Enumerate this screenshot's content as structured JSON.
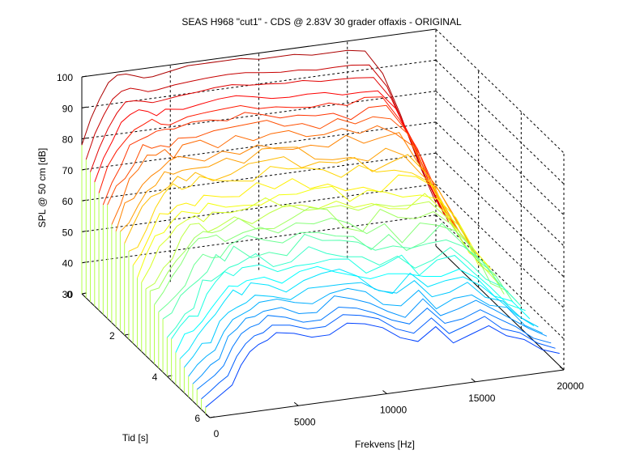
{
  "chart_data": {
    "type": "waterfall-3d",
    "title": "SEAS H968 \"cut1\" - CDS @ 2.83V 30 grader offaxis - ORIGINAL",
    "xlabel": "Frekvens [Hz]",
    "ylabel": "Tid [s]",
    "zlabel": "SPL @ 50 cm [dB]",
    "xlim": [
      0,
      20000
    ],
    "ylim": [
      0,
      6
    ],
    "zlim": [
      30,
      100
    ],
    "x_ticks": [
      "0",
      "5000",
      "10000",
      "15000",
      "20000"
    ],
    "y_ticks": [
      "0",
      "2",
      "4",
      "6"
    ],
    "z_ticks": [
      "30",
      "40",
      "50",
      "60",
      "70",
      "80",
      "90",
      "100"
    ],
    "colormap": "jet",
    "grid": true,
    "x": [
      0,
      500,
      1000,
      1500,
      2000,
      2500,
      3000,
      3500,
      4000,
      5000,
      6000,
      7000,
      8000,
      9000,
      10000,
      11000,
      12000,
      13000,
      14000,
      15000,
      16000,
      17000,
      18000,
      19000,
      20000
    ],
    "time_slices": [
      0,
      0.2,
      0.4,
      0.6,
      0.8,
      1.0,
      1.2,
      1.4,
      1.6,
      1.8,
      2.0,
      2.2,
      2.4,
      2.6,
      2.8,
      3.0,
      3.2,
      3.4,
      3.6,
      3.8,
      4.0,
      4.2,
      4.4,
      4.6,
      4.8,
      5.0,
      5.2,
      5.4,
      5.6,
      5.8
    ],
    "first_slice_spl": [
      78,
      86,
      92,
      97,
      99,
      99,
      98,
      97,
      97,
      98,
      99,
      99,
      99,
      99,
      98,
      98,
      98,
      97,
      97,
      97,
      96,
      88,
      74,
      58,
      44
    ],
    "last_slice_spl": [
      32,
      34,
      36,
      38,
      44,
      48,
      50,
      51,
      53,
      52,
      50,
      50,
      53,
      52,
      50,
      46,
      44,
      48,
      42,
      44,
      46,
      42,
      40,
      36,
      34
    ]
  }
}
